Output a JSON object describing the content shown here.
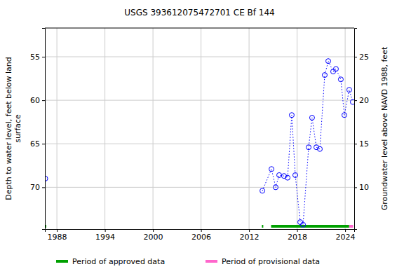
{
  "chart_data": {
    "type": "line",
    "title": "USGS 393612075472701 CE Bf 144",
    "ylabel": [
      "Depth to water level, feet below land",
      "surface"
    ],
    "y2label": "Groundwater level above NAVD 1988, feet",
    "x": [
      1986.55,
      null,
      2013.66,
      2014.8,
      2015.32,
      2015.76,
      2016.37,
      2016.81,
      2017.33,
      2017.77,
      2018.39,
      2018.74,
      2019.44,
      2019.87,
      2020.4,
      2020.84,
      2021.45,
      2021.89,
      2022.5,
      2022.85,
      2023.46,
      2023.9,
      2024.51,
      2024.95
    ],
    "series": [
      {
        "name": "Depth to water level",
        "color": "#0000ff",
        "marker": "circle-open",
        "line_style": "dotted",
        "values": [
          69.0,
          null,
          70.4,
          67.9,
          70.0,
          68.6,
          68.7,
          68.9,
          61.7,
          68.6,
          74.0,
          74.3,
          65.4,
          62.0,
          65.4,
          65.6,
          57.1,
          55.5,
          56.7,
          56.4,
          57.6,
          61.7,
          58.8,
          60.2
        ]
      }
    ],
    "periods": [
      {
        "name": "Period of approved data",
        "color": "#00a000",
        "ranges": [
          [
            1986.5,
            1986.6
          ],
          [
            2013.6,
            2013.75
          ],
          [
            2014.75,
            2024.5
          ]
        ]
      },
      {
        "name": "Period of provisional data",
        "color": "#ff66cc",
        "ranges": [
          [
            2024.5,
            2025.0
          ]
        ]
      }
    ],
    "xlim": [
      1986.5,
      2025.13
    ],
    "xticks": [
      1988,
      1994,
      2000,
      2006,
      2012,
      2018,
      2024
    ],
    "ylim": [
      74.8,
      51.7
    ],
    "yticks": [
      55,
      60,
      65,
      70
    ],
    "y2lim": [
      5.2,
      28.3
    ],
    "y2ticks": [
      10,
      15,
      20,
      25
    ],
    "grid": true,
    "legend": "bottom"
  }
}
